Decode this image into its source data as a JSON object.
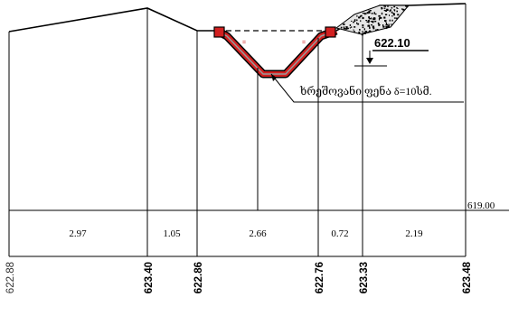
{
  "datum": {
    "label": "619.00"
  },
  "callouts": {
    "level_value": "622.10",
    "material_note": "ხრეშოვანი ფენა δ=10სმ."
  },
  "distances": [
    "2.97",
    "1.05",
    "2.66",
    "0.72",
    "2.19"
  ],
  "elevations": [
    "622.88",
    "623.40",
    "622.86",
    "622.76",
    "623.33",
    "623.48"
  ],
  "colors": {
    "lining": "#d22020",
    "lining_inner": "#9a9a9a",
    "ink": "#000000"
  }
}
